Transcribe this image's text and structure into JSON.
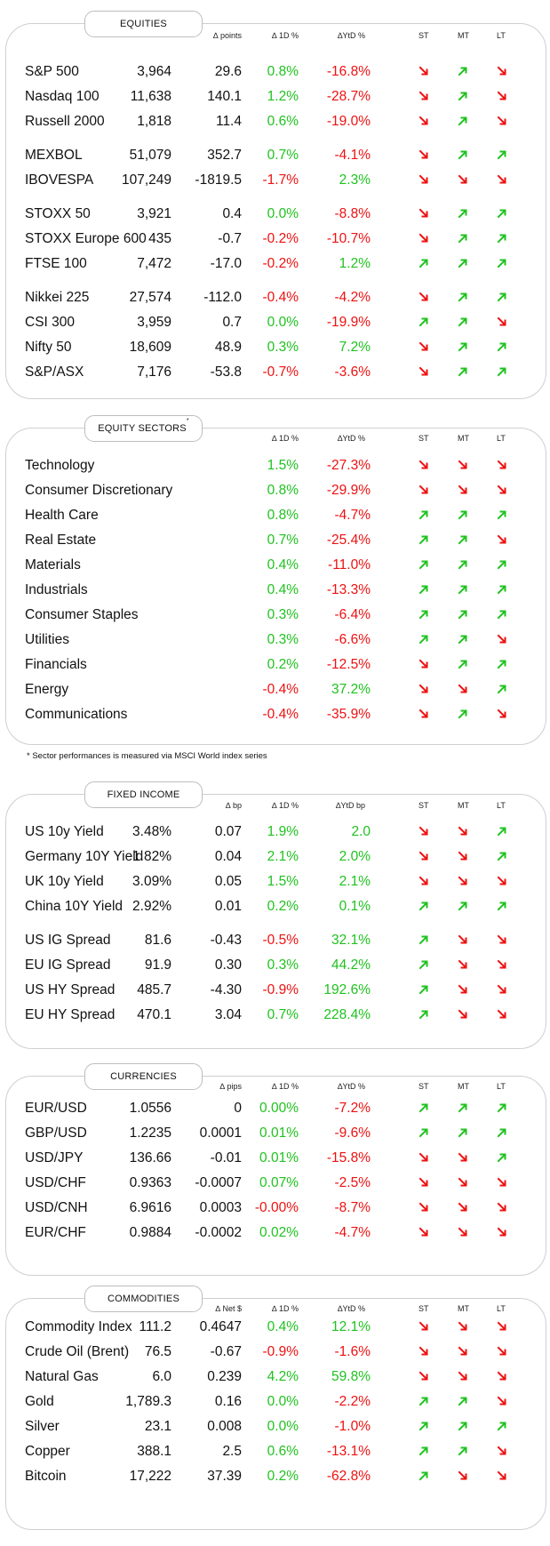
{
  "colors": {
    "up": "#1fc21f",
    "down": "#ee1111",
    "border": "#cfcfcf"
  },
  "icons": {
    "up": "arrow-up-right-icon",
    "down": "arrow-down-right-icon"
  },
  "footnote": "* Sector performances is measured via MSCI World index series",
  "sections": [
    {
      "id": "equities",
      "title": "EQUITIES",
      "title_sup": "",
      "headers": {
        "chg": "∆ points",
        "d1": "∆ 1D %",
        "ytd": "∆YtD %",
        "st": "ST",
        "mt": "MT",
        "lt": "LT"
      },
      "groups": [
        [
          {
            "name": "S&P 500",
            "value": "3,964",
            "chg": "29.6",
            "d1": "0.8%",
            "ytd": "-16.8%",
            "st": "down",
            "mt": "up",
            "lt": "down"
          },
          {
            "name": "Nasdaq 100",
            "value": "11,638",
            "chg": "140.1",
            "d1": "1.2%",
            "ytd": "-28.7%",
            "st": "down",
            "mt": "up",
            "lt": "down"
          },
          {
            "name": "Russell 2000",
            "value": "1,818",
            "chg": "11.4",
            "d1": "0.6%",
            "ytd": "-19.0%",
            "st": "down",
            "mt": "up",
            "lt": "down"
          }
        ],
        [
          {
            "name": "MEXBOL",
            "value": "51,079",
            "chg": "352.7",
            "d1": "0.7%",
            "ytd": "-4.1%",
            "st": "down",
            "mt": "up",
            "lt": "up"
          },
          {
            "name": "IBOVESPA",
            "value": "107,249",
            "chg": "-1819.5",
            "d1": "-1.7%",
            "ytd": "2.3%",
            "st": "down",
            "mt": "down",
            "lt": "down"
          }
        ],
        [
          {
            "name": "STOXX 50",
            "value": "3,921",
            "chg": "0.4",
            "d1": "0.0%",
            "ytd": "-8.8%",
            "st": "down",
            "mt": "up",
            "lt": "up"
          },
          {
            "name": "STOXX Europe 600",
            "value": "435",
            "chg": "-0.7",
            "d1": "-0.2%",
            "ytd": "-10.7%",
            "st": "down",
            "mt": "up",
            "lt": "up"
          },
          {
            "name": "FTSE 100",
            "value": "7,472",
            "chg": "-17.0",
            "d1": "-0.2%",
            "ytd": "1.2%",
            "st": "up",
            "mt": "up",
            "lt": "up"
          }
        ],
        [
          {
            "name": "Nikkei 225",
            "value": "27,574",
            "chg": "-112.0",
            "d1": "-0.4%",
            "ytd": "-4.2%",
            "st": "down",
            "mt": "up",
            "lt": "up"
          },
          {
            "name": "CSI 300",
            "value": "3,959",
            "chg": "0.7",
            "d1": "0.0%",
            "ytd": "-19.9%",
            "st": "up",
            "mt": "up",
            "lt": "down"
          },
          {
            "name": "Nifty  50",
            "value": "18,609",
            "chg": "48.9",
            "d1": "0.3%",
            "ytd": "7.2%",
            "st": "down",
            "mt": "up",
            "lt": "up"
          },
          {
            "name": "S&P/ASX",
            "value": "7,176",
            "chg": "-53.8",
            "d1": "-0.7%",
            "ytd": "-3.6%",
            "st": "down",
            "mt": "up",
            "lt": "up"
          }
        ]
      ]
    },
    {
      "id": "sectors",
      "title": "EQUITY SECTORS",
      "title_sup": "*",
      "headers": {
        "chg": "",
        "d1": "∆ 1D %",
        "ytd": "∆YtD %",
        "st": "ST",
        "mt": "MT",
        "lt": "LT"
      },
      "groups": [
        [
          {
            "name": "Technology",
            "value": "",
            "chg": "",
            "d1": "1.5%",
            "ytd": "-27.3%",
            "st": "down",
            "mt": "down",
            "lt": "down"
          },
          {
            "name": "Consumer Discretionary",
            "value": "",
            "chg": "",
            "d1": "0.8%",
            "ytd": "-29.9%",
            "st": "down",
            "mt": "down",
            "lt": "down"
          },
          {
            "name": "Health Care",
            "value": "",
            "chg": "",
            "d1": "0.8%",
            "ytd": "-4.7%",
            "st": "up",
            "mt": "up",
            "lt": "up"
          },
          {
            "name": "Real Estate",
            "value": "",
            "chg": "",
            "d1": "0.7%",
            "ytd": "-25.4%",
            "st": "up",
            "mt": "up",
            "lt": "down"
          },
          {
            "name": "Materials",
            "value": "",
            "chg": "",
            "d1": "0.4%",
            "ytd": "-11.0%",
            "st": "up",
            "mt": "up",
            "lt": "up"
          },
          {
            "name": "Industrials",
            "value": "",
            "chg": "",
            "d1": "0.4%",
            "ytd": "-13.3%",
            "st": "up",
            "mt": "up",
            "lt": "up"
          },
          {
            "name": "Consumer Staples",
            "value": "",
            "chg": "",
            "d1": "0.3%",
            "ytd": "-6.4%",
            "st": "up",
            "mt": "up",
            "lt": "up"
          },
          {
            "name": "Utilities",
            "value": "",
            "chg": "",
            "d1": "0.3%",
            "ytd": "-6.6%",
            "st": "up",
            "mt": "up",
            "lt": "down"
          },
          {
            "name": "Financials",
            "value": "",
            "chg": "",
            "d1": "0.2%",
            "ytd": "-12.5%",
            "st": "down",
            "mt": "up",
            "lt": "up"
          },
          {
            "name": "Energy",
            "value": "",
            "chg": "",
            "d1": "-0.4%",
            "ytd": "37.2%",
            "st": "down",
            "mt": "down",
            "lt": "up"
          },
          {
            "name": "Communications",
            "value": "",
            "chg": "",
            "d1": "-0.4%",
            "ytd": "-35.9%",
            "st": "down",
            "mt": "up",
            "lt": "down"
          }
        ]
      ]
    },
    {
      "id": "fixed",
      "title": "FIXED INCOME",
      "title_sup": "",
      "headers": {
        "chg": "∆ bp",
        "d1": "∆ 1D %",
        "ytd": "∆YtD bp",
        "st": "ST",
        "mt": "MT",
        "lt": "LT"
      },
      "groups": [
        [
          {
            "name": "US 10y Yield",
            "value": "3.48%",
            "chg": "0.07",
            "d1": "1.9%",
            "ytd": "2.0",
            "st": "down",
            "mt": "down",
            "lt": "up"
          },
          {
            "name": "Germany 10Y Yield",
            "value": "1.82%",
            "chg": "0.04",
            "d1": "2.1%",
            "ytd": "2.0%",
            "st": "down",
            "mt": "down",
            "lt": "up"
          },
          {
            "name": "UK 10y Yield",
            "value": "3.09%",
            "chg": "0.05",
            "d1": "1.5%",
            "ytd": "2.1%",
            "st": "down",
            "mt": "down",
            "lt": "down"
          },
          {
            "name": "China 10Y Yield",
            "value": "2.92%",
            "chg": "0.01",
            "d1": "0.2%",
            "ytd": "0.1%",
            "st": "up",
            "mt": "up",
            "lt": "up"
          }
        ],
        [
          {
            "name": "US IG Spread",
            "value": "81.6",
            "chg": "-0.43",
            "d1": "-0.5%",
            "ytd": "32.1%",
            "st": "up",
            "mt": "down",
            "lt": "down"
          },
          {
            "name": "EU IG Spread",
            "value": "91.9",
            "chg": "0.30",
            "d1": "0.3%",
            "ytd": "44.2%",
            "st": "up",
            "mt": "down",
            "lt": "down"
          },
          {
            "name": "US HY Spread",
            "value": "485.7",
            "chg": "-4.30",
            "d1": "-0.9%",
            "ytd": "192.6%",
            "st": "up",
            "mt": "down",
            "lt": "down"
          },
          {
            "name": "EU HY Spread",
            "value": "470.1",
            "chg": "3.04",
            "d1": "0.7%",
            "ytd": "228.4%",
            "st": "up",
            "mt": "down",
            "lt": "down"
          }
        ]
      ]
    },
    {
      "id": "currencies",
      "title": "CURRENCIES",
      "title_sup": "",
      "headers": {
        "chg": "∆ pips",
        "d1": "∆ 1D %",
        "ytd": "∆YtD %",
        "st": "ST",
        "mt": "MT",
        "lt": "LT"
      },
      "groups": [
        [
          {
            "name": "EUR/USD",
            "value": "1.0556",
            "chg": "0",
            "d1": "0.00%",
            "ytd": "-7.2%",
            "st": "up",
            "mt": "up",
            "lt": "up"
          },
          {
            "name": "GBP/USD",
            "value": "1.2235",
            "chg": "0.0001",
            "d1": "0.01%",
            "ytd": "-9.6%",
            "st": "up",
            "mt": "up",
            "lt": "up"
          },
          {
            "name": "USD/JPY",
            "value": "136.66",
            "chg": "-0.01",
            "d1": "0.01%",
            "ytd": "-15.8%",
            "st": "down",
            "mt": "down",
            "lt": "up"
          },
          {
            "name": "USD/CHF",
            "value": "0.9363",
            "chg": "-0.0007",
            "d1": "0.07%",
            "ytd": "-2.5%",
            "st": "down",
            "mt": "down",
            "lt": "down"
          },
          {
            "name": "USD/CNH",
            "value": "6.9616",
            "chg": "0.0003",
            "d1": "-0.00%",
            "ytd": "-8.7%",
            "st": "down",
            "mt": "down",
            "lt": "down"
          },
          {
            "name": "EUR/CHF",
            "value": "0.9884",
            "chg": "-0.0002",
            "d1": "0.02%",
            "ytd": "-4.7%",
            "st": "down",
            "mt": "down",
            "lt": "down"
          }
        ]
      ]
    },
    {
      "id": "commodities",
      "title": "COMMODITIES",
      "title_sup": "",
      "headers": {
        "chg": "∆ Net $",
        "d1": "∆ 1D %",
        "ytd": "∆YtD %",
        "st": "ST",
        "mt": "MT",
        "lt": "LT"
      },
      "groups": [
        [
          {
            "name": "Commodity Index",
            "value": "111.2",
            "chg": "0.4647",
            "d1": "0.4%",
            "ytd": "12.1%",
            "st": "down",
            "mt": "down",
            "lt": "down"
          },
          {
            "name": "Crude Oil (Brent)",
            "value": "76.5",
            "chg": "-0.67",
            "d1": "-0.9%",
            "ytd": "-1.6%",
            "st": "down",
            "mt": "down",
            "lt": "down"
          },
          {
            "name": "Natural Gas",
            "value": "6.0",
            "chg": "0.239",
            "d1": "4.2%",
            "ytd": "59.8%",
            "st": "down",
            "mt": "down",
            "lt": "down"
          },
          {
            "name": "Gold",
            "value": "1,789.3",
            "chg": "0.16",
            "d1": "0.0%",
            "ytd": "-2.2%",
            "st": "up",
            "mt": "up",
            "lt": "down"
          },
          {
            "name": "Silver",
            "value": "23.1",
            "chg": "0.008",
            "d1": "0.0%",
            "ytd": "-1.0%",
            "st": "up",
            "mt": "up",
            "lt": "up"
          },
          {
            "name": "Copper",
            "value": "388.1",
            "chg": "2.5",
            "d1": "0.6%",
            "ytd": "-13.1%",
            "st": "up",
            "mt": "up",
            "lt": "down"
          },
          {
            "name": "Bitcoin",
            "value": "17,222",
            "chg": "37.39",
            "d1": "0.2%",
            "ytd": "-62.8%",
            "st": "up",
            "mt": "down",
            "lt": "down"
          }
        ]
      ]
    }
  ]
}
